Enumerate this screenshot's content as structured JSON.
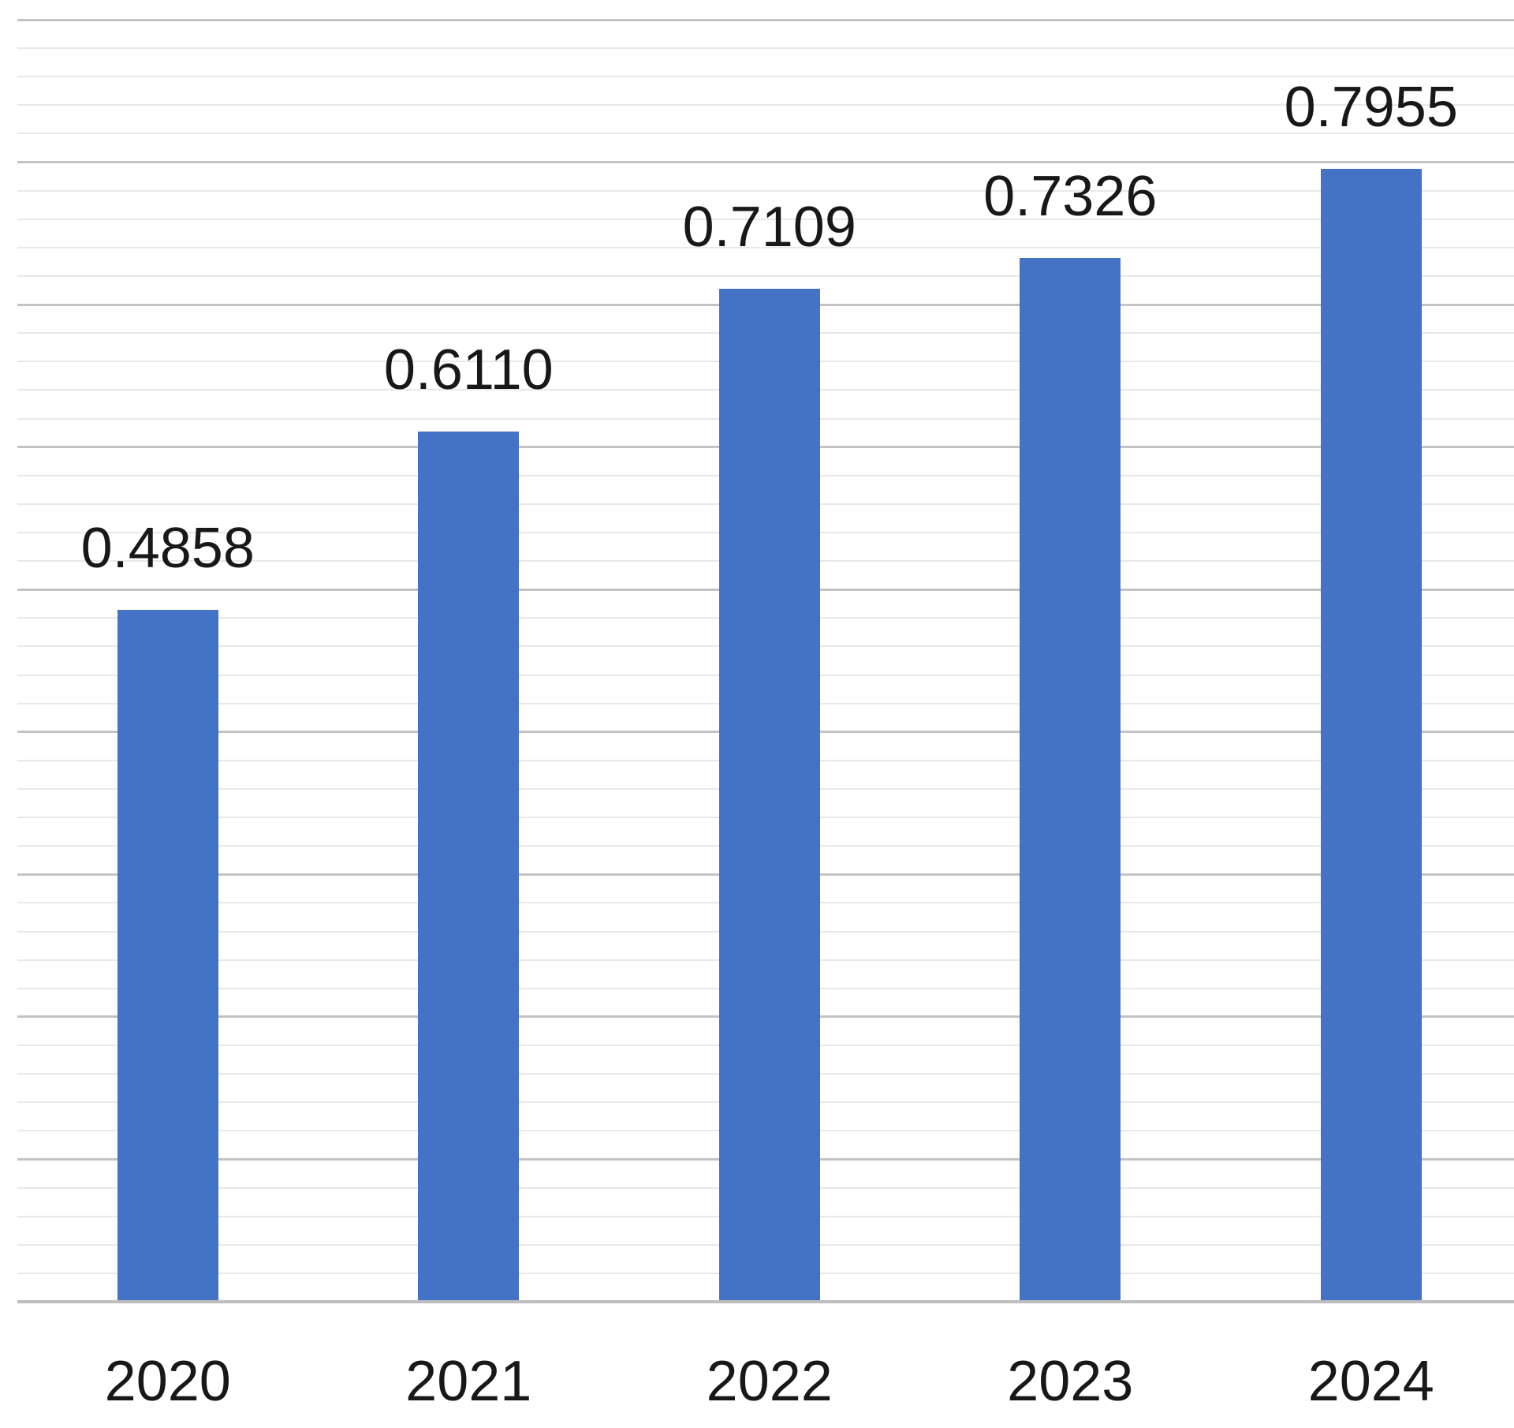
{
  "chart_data": {
    "type": "bar",
    "title": "",
    "xlabel": "",
    "ylabel": "",
    "categories": [
      "2020",
      "2021",
      "2022",
      "2023",
      "2024"
    ],
    "series": [
      {
        "name": "",
        "values": [
          0.4858,
          0.611,
          0.7109,
          0.7326,
          0.7955
        ]
      }
    ],
    "data_labels": [
      "0.4858",
      "0.6110",
      "0.7109",
      "0.7326",
      "0.7955"
    ],
    "ylim": [
      0,
      0.9
    ],
    "y_major_step": 0.1,
    "y_minor_step": 0.02,
    "y_axis_labels_visible": false,
    "grid": "horizontal-major-and-minor",
    "legend": "none",
    "colors": {
      "bar": "#4472C4",
      "grid_major": "#C3C3C3",
      "grid_minor": "#E8E8E8",
      "axis_line": "#BDBDBD",
      "text": "#181818",
      "background": "#FFFFFF"
    }
  }
}
